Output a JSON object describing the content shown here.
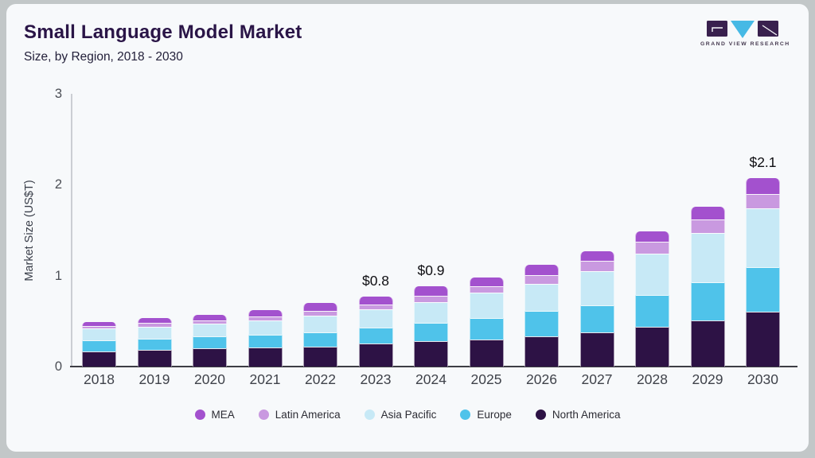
{
  "page": {
    "title": "Small Language Model Market",
    "subtitle": "Size, by Region, 2018 - 2030",
    "brand": {
      "name_line": "GRAND VIEW RESEARCH"
    }
  },
  "colors": {
    "page_background": "#c2c7c8",
    "card_background": "#f7f9fb",
    "title_text": "#2a1547",
    "axis_line": "#3d3d44",
    "logo_dark": "#39204e",
    "logo_cyan": "#46b9e5"
  },
  "chart_data": {
    "type": "bar",
    "stacked": true,
    "title": "Small Language Model Market",
    "subtitle": "Size, by Region, 2018 - 2030",
    "xlabel": "",
    "ylabel": "Market Size (US$T)",
    "ylim": [
      0,
      3
    ],
    "yticks": [
      0,
      1,
      2,
      3
    ],
    "grid": false,
    "legend_position": "bottom",
    "categories": [
      "2018",
      "2019",
      "2020",
      "2021",
      "2022",
      "2023",
      "2024",
      "2025",
      "2026",
      "2027",
      "2028",
      "2029",
      "2030"
    ],
    "stack_order_bottom_to_top": [
      "North America",
      "Europe",
      "Asia Pacific",
      "Latin America",
      "MEA"
    ],
    "series": [
      {
        "name": "North America",
        "color": "#2d1245",
        "values": [
          0.17,
          0.18,
          0.2,
          0.21,
          0.22,
          0.25,
          0.28,
          0.3,
          0.33,
          0.38,
          0.44,
          0.51,
          0.6
        ]
      },
      {
        "name": "Europe",
        "color": "#4fc3ea",
        "values": [
          0.12,
          0.13,
          0.13,
          0.14,
          0.16,
          0.18,
          0.2,
          0.23,
          0.28,
          0.29,
          0.35,
          0.42,
          0.49
        ]
      },
      {
        "name": "Asia Pacific",
        "color": "#c7e9f6",
        "values": [
          0.13,
          0.13,
          0.14,
          0.16,
          0.18,
          0.2,
          0.23,
          0.28,
          0.3,
          0.38,
          0.45,
          0.54,
          0.65
        ]
      },
      {
        "name": "Latin America",
        "color": "#c999e0",
        "values": [
          0.03,
          0.04,
          0.04,
          0.04,
          0.05,
          0.05,
          0.07,
          0.07,
          0.1,
          0.11,
          0.13,
          0.15,
          0.16
        ]
      },
      {
        "name": "MEA",
        "color": "#a351ce",
        "values": [
          0.04,
          0.05,
          0.06,
          0.07,
          0.09,
          0.09,
          0.1,
          0.1,
          0.11,
          0.11,
          0.12,
          0.14,
          0.17
        ]
      }
    ],
    "legend_display_order": [
      "MEA",
      "Latin America",
      "Asia Pacific",
      "Europe",
      "North America"
    ],
    "annotations": [
      {
        "category": "2023",
        "text": "$0.8"
      },
      {
        "category": "2024",
        "text": "$0.9"
      },
      {
        "category": "2030",
        "text": "$2.1"
      }
    ],
    "approx_totals": [
      0.49,
      0.53,
      0.57,
      0.62,
      0.7,
      0.77,
      0.88,
      0.98,
      1.12,
      1.27,
      1.49,
      1.76,
      2.07
    ]
  }
}
